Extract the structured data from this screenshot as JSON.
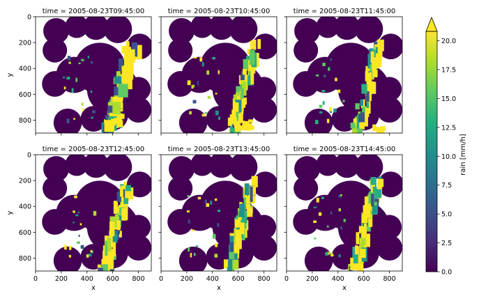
{
  "chart_data": {
    "type": "heatmap",
    "layout": {
      "rows": 2,
      "cols": 3,
      "sharex": true,
      "sharey": true
    },
    "panels": [
      {
        "title": "time = 2005-08-23T09:45:00"
      },
      {
        "title": "time = 2005-08-23T10:45:00"
      },
      {
        "title": "time = 2005-08-23T11:45:00"
      },
      {
        "title": "time = 2005-08-23T12:45:00"
      },
      {
        "title": "time = 2005-08-23T13:45:00"
      },
      {
        "title": "time = 2005-08-23T14:45:00"
      }
    ],
    "xlabel": "x",
    "ylabel": "y",
    "xlim": [
      0,
      900
    ],
    "ylim": [
      900,
      0
    ],
    "xticks": [
      0,
      200,
      400,
      600,
      800
    ],
    "yticks": [
      0,
      200,
      400,
      600,
      800
    ],
    "y_inverted": true,
    "grid": false,
    "colorbar": {
      "label": "rain [mm/h]",
      "colormap": "viridis",
      "vmin": 0,
      "vmax": 20,
      "extend": "max",
      "ticks": [
        "0.0",
        "2.5",
        "5.0",
        "7.5",
        "10.0",
        "12.5",
        "15.0",
        "17.5",
        "20.0"
      ]
    },
    "background_color": "#440154",
    "high_color": "#fde725"
  }
}
